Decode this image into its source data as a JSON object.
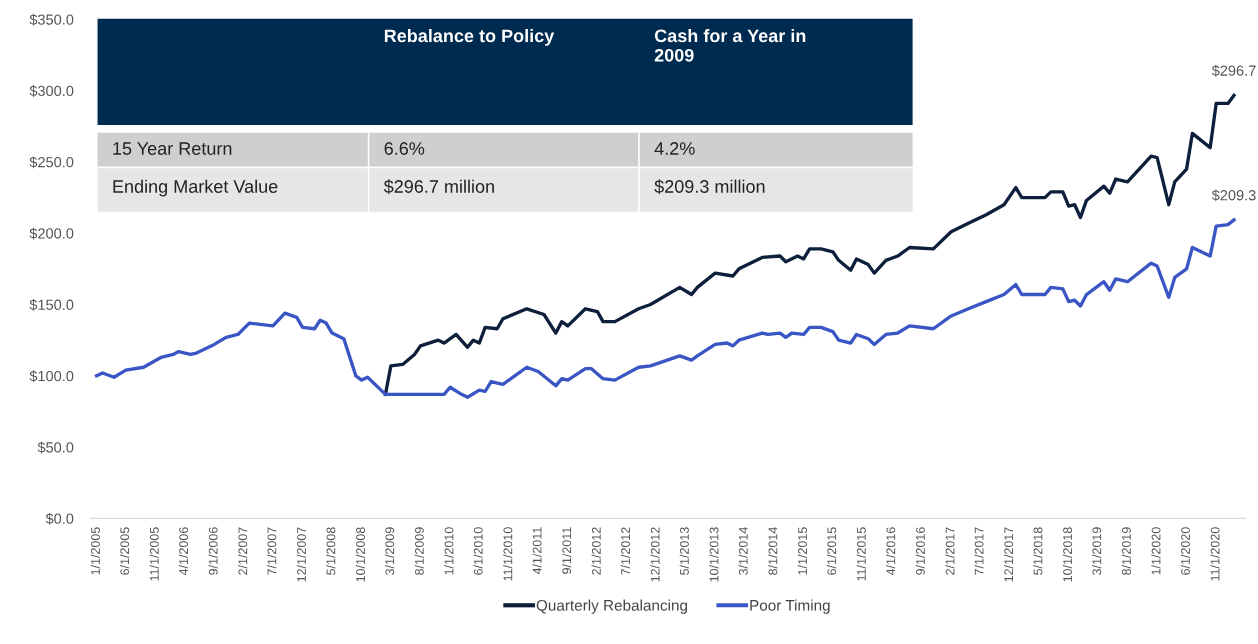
{
  "chart_data": {
    "type": "line",
    "series": [
      {
        "name": "Quarterly Rebalancing",
        "color": "#0d1f3a",
        "x": [
          "2009-02",
          "2009-03",
          "2009-05",
          "2009-07",
          "2009-08",
          "2009-11",
          "2009-12",
          "2010-02",
          "2010-04",
          "2010-05",
          "2010-06",
          "2010-07",
          "2010-09",
          "2010-10",
          "2011-02",
          "2011-05",
          "2011-07",
          "2011-08",
          "2011-09",
          "2011-12",
          "2012-02",
          "2012-03",
          "2012-05",
          "2012-09",
          "2012-11",
          "2013-04",
          "2013-06",
          "2013-07",
          "2013-10",
          "2014-01",
          "2014-02",
          "2014-06",
          "2014-09",
          "2014-10",
          "2014-12",
          "2015-01",
          "2015-02",
          "2015-04",
          "2015-06",
          "2015-07",
          "2015-09",
          "2015-10",
          "2015-12",
          "2016-01",
          "2016-03",
          "2016-05",
          "2016-07",
          "2016-11",
          "2017-02",
          "2017-05",
          "2017-08",
          "2017-11",
          "2018-01",
          "2018-02",
          "2018-06",
          "2018-07",
          "2018-09",
          "2018-10",
          "2018-11",
          "2018-12",
          "2019-01",
          "2019-04",
          "2019-05",
          "2019-06",
          "2019-08",
          "2019-12",
          "2020-01",
          "2020-03",
          "2020-04",
          "2020-06",
          "2020-07",
          "2020-10",
          "2020-11",
          "2021-01",
          "2021-02"
        ],
        "values": [
          87,
          107,
          108,
          115,
          121,
          125,
          123,
          129,
          120,
          125,
          123,
          134,
          133,
          140,
          147,
          143,
          130,
          138,
          135,
          147,
          145,
          138,
          138,
          147,
          150,
          162,
          157,
          162,
          172,
          170,
          175,
          183,
          184,
          180,
          184,
          182,
          189,
          189,
          187,
          181,
          174,
          182,
          178,
          172,
          181,
          184,
          190,
          189,
          201,
          207,
          213,
          220,
          232,
          225,
          225,
          229,
          229,
          219,
          220,
          211,
          223,
          233,
          228,
          238,
          236,
          254,
          253,
          220,
          236,
          245,
          270,
          260,
          291,
          291,
          296.7
        ]
      },
      {
        "name": "Poor Timing",
        "color": "#3a56c5",
        "x": [
          "2005-01",
          "2005-02",
          "2005-04",
          "2005-06",
          "2005-09",
          "2005-12",
          "2006-02",
          "2006-03",
          "2006-05",
          "2006-06",
          "2006-09",
          "2006-11",
          "2007-01",
          "2007-03",
          "2007-07",
          "2007-09",
          "2007-11",
          "2007-12",
          "2008-02",
          "2008-03",
          "2008-04",
          "2008-05",
          "2008-07",
          "2008-09",
          "2008-10",
          "2008-11",
          "2009-02",
          "2009-12",
          "2010-01",
          "2010-03",
          "2010-04",
          "2010-06",
          "2010-07",
          "2010-08",
          "2010-10",
          "2010-12",
          "2011-02",
          "2011-04",
          "2011-07",
          "2011-08",
          "2011-09",
          "2011-12",
          "2012-01",
          "2012-03",
          "2012-05",
          "2012-09",
          "2012-11",
          "2013-04",
          "2013-06",
          "2013-07",
          "2013-10",
          "2013-12",
          "2014-01",
          "2014-02",
          "2014-06",
          "2014-07",
          "2014-09",
          "2014-10",
          "2014-11",
          "2015-01",
          "2015-02",
          "2015-04",
          "2015-06",
          "2015-07",
          "2015-09",
          "2015-10",
          "2015-12",
          "2016-01",
          "2016-03",
          "2016-05",
          "2016-07",
          "2016-11",
          "2017-02",
          "2017-05",
          "2017-08",
          "2017-11",
          "2018-01",
          "2018-02",
          "2018-06",
          "2018-07",
          "2018-09",
          "2018-10",
          "2018-11",
          "2018-12",
          "2019-01",
          "2019-04",
          "2019-05",
          "2019-06",
          "2019-08",
          "2019-12",
          "2020-01",
          "2020-03",
          "2020-04",
          "2020-06",
          "2020-07",
          "2020-10",
          "2020-11",
          "2021-01",
          "2021-02"
        ],
        "values": [
          100,
          102,
          99,
          104,
          106,
          113,
          115,
          117,
          115,
          116,
          122,
          127,
          129,
          137,
          135,
          144,
          141,
          134,
          133,
          139,
          137,
          130,
          126,
          100,
          97,
          99,
          87,
          87,
          92,
          87,
          85,
          90,
          89,
          96,
          94,
          100,
          106,
          103,
          93,
          98,
          97,
          105,
          105,
          98,
          97,
          106,
          107,
          114,
          111,
          114,
          122,
          123,
          121,
          125,
          130,
          129,
          130,
          127,
          130,
          129,
          134,
          134,
          131,
          125,
          123,
          129,
          126,
          122,
          129,
          130,
          135,
          133,
          142,
          147,
          152,
          157,
          164,
          157,
          157,
          162,
          161,
          152,
          153,
          149,
          157,
          166,
          160,
          168,
          166,
          179,
          177,
          155,
          169,
          175,
          190,
          184,
          205,
          206,
          209.3
        ]
      }
    ],
    "xlim": [
      "2004-12",
      "2021-04"
    ],
    "xticks": [
      {
        "value": "2005-01",
        "label": "1/1/2005"
      },
      {
        "value": "2005-06",
        "label": "6/1/2005"
      },
      {
        "value": "2005-11",
        "label": "11/1/2005"
      },
      {
        "value": "2006-04",
        "label": "4/1/2006"
      },
      {
        "value": "2006-09",
        "label": "9/1/2006"
      },
      {
        "value": "2007-02",
        "label": "2/1/2007"
      },
      {
        "value": "2007-07",
        "label": "7/1/2007"
      },
      {
        "value": "2007-12",
        "label": "12/1/2007"
      },
      {
        "value": "2008-05",
        "label": "5/1/2008"
      },
      {
        "value": "2008-10",
        "label": "10/1/2008"
      },
      {
        "value": "2009-03",
        "label": "3/1/2009"
      },
      {
        "value": "2009-08",
        "label": "8/1/2009"
      },
      {
        "value": "2010-01",
        "label": "1/1/2010"
      },
      {
        "value": "2010-06",
        "label": "6/1/2010"
      },
      {
        "value": "2010-11",
        "label": "11/1/2010"
      },
      {
        "value": "2011-04",
        "label": "4/1/2011"
      },
      {
        "value": "2011-09",
        "label": "9/1/2011"
      },
      {
        "value": "2012-02",
        "label": "2/1/2012"
      },
      {
        "value": "2012-07",
        "label": "7/1/2012"
      },
      {
        "value": "2012-12",
        "label": "12/1/2012"
      },
      {
        "value": "2013-05",
        "label": "5/1/2013"
      },
      {
        "value": "2013-10",
        "label": "10/1/2013"
      },
      {
        "value": "2014-03",
        "label": "3/1/2014"
      },
      {
        "value": "2014-08",
        "label": "8/1/2014"
      },
      {
        "value": "2015-01",
        "label": "1/1/2015"
      },
      {
        "value": "2015-06",
        "label": "6/1/2015"
      },
      {
        "value": "2015-11",
        "label": "11/1/2015"
      },
      {
        "value": "2016-04",
        "label": "4/1/2016"
      },
      {
        "value": "2016-09",
        "label": "9/1/2016"
      },
      {
        "value": "2017-02",
        "label": "2/1/2017"
      },
      {
        "value": "2017-07",
        "label": "7/1/2017"
      },
      {
        "value": "2017-12",
        "label": "12/1/2017"
      },
      {
        "value": "2018-05",
        "label": "5/1/2018"
      },
      {
        "value": "2018-10",
        "label": "10/1/2018"
      },
      {
        "value": "2019-03",
        "label": "3/1/2019"
      },
      {
        "value": "2019-08",
        "label": "8/1/2019"
      },
      {
        "value": "2020-01",
        "label": "1/1/2020"
      },
      {
        "value": "2020-06",
        "label": "6/1/2020"
      },
      {
        "value": "2020-11",
        "label": "11/1/2020"
      }
    ],
    "ylim": [
      0,
      350
    ],
    "yticks": [
      {
        "value": 0,
        "label": "$0.0"
      },
      {
        "value": 50,
        "label": "$50.0"
      },
      {
        "value": 100,
        "label": "$100.0"
      },
      {
        "value": 150,
        "label": "$150.0"
      },
      {
        "value": 200,
        "label": "$200.0"
      },
      {
        "value": 250,
        "label": "$250.0"
      },
      {
        "value": 300,
        "label": "$300.0"
      },
      {
        "value": 350,
        "label": "$350.0"
      }
    ],
    "annotations": [
      {
        "text": "$296.7",
        "x": "2021-02",
        "y": 296.7
      },
      {
        "text": "$209.3",
        "x": "2021-02",
        "y": 209.3
      },
      "Rebalance to Policy",
      "Cash for a Year in\n2009",
      "15 Year Return",
      "6.6%",
      "4.2%",
      "Ending Market Value",
      "$296.7 million",
      "$209.3 million"
    ],
    "grid": false,
    "legend": "bottom",
    "line_style": "solid",
    "marker": "none"
  }
}
